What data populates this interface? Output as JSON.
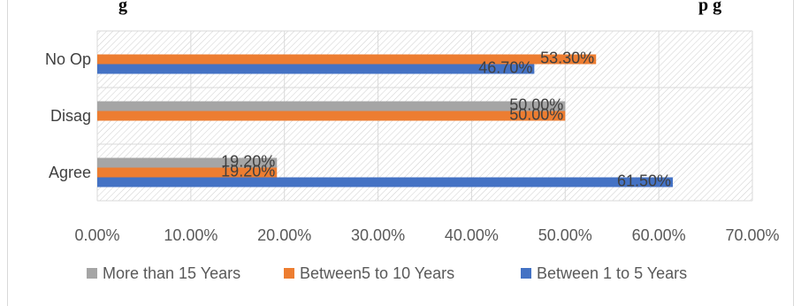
{
  "chart_data": {
    "type": "bar",
    "orientation": "horizontal",
    "title": "g",
    "title_trailing": "p g",
    "categories": [
      "Agree",
      "Disag",
      "No Op"
    ],
    "series": [
      {
        "name": "Between 1 to 5 Years",
        "color": "#4472c4",
        "values": [
          61.5,
          null,
          46.7
        ],
        "labels": [
          "61.50%",
          "",
          "46.70%"
        ]
      },
      {
        "name": "Between5 to 10 Years",
        "color": "#ed7d31",
        "values": [
          19.2,
          50.0,
          53.3
        ],
        "labels": [
          "19.20%",
          "50.00%",
          "53.30%"
        ]
      },
      {
        "name": "More than 15  Years",
        "color": "#a5a5a5",
        "values": [
          19.2,
          50.0,
          null
        ],
        "labels": [
          "19.20%",
          "50.00%",
          ""
        ]
      }
    ],
    "xlim": [
      0,
      70
    ],
    "x_ticks": [
      "0.00%",
      "10.00%",
      "20.00%",
      "30.00%",
      "40.00%",
      "50.00%",
      "60.00%",
      "70.00%"
    ],
    "grid": true,
    "plot_area_pattern": "diagonal-hatch",
    "legend": {
      "position": "bottom",
      "entries": [
        "More than 15  Years",
        "Between5 to 10 Years",
        "Between 1 to 5 Years"
      ]
    }
  }
}
